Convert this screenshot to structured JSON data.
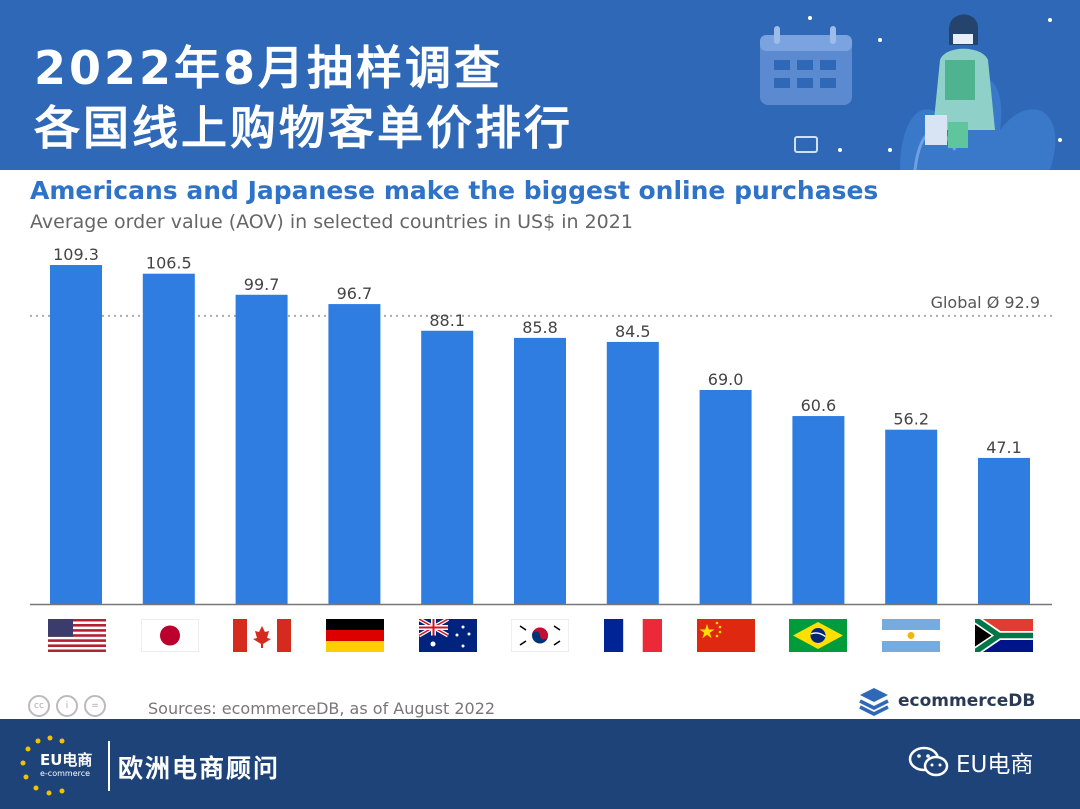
{
  "header": {
    "title_line1": "2022年8月抽样调查",
    "title_line2": "各国线上购物客单价排行"
  },
  "chart_data": {
    "type": "bar",
    "title": "Americans and Japanese make the biggest online purchases",
    "subtitle": "Average order value (AOV) in selected countries in US$ in 2021",
    "categories": [
      "United States",
      "Japan",
      "Canada",
      "Germany",
      "Australia",
      "South Korea",
      "France",
      "China",
      "Brazil",
      "Argentina",
      "South Africa"
    ],
    "values": [
      109.3,
      106.5,
      99.7,
      96.7,
      88.1,
      85.8,
      84.5,
      69.0,
      60.6,
      56.2,
      47.1
    ],
    "value_labels": [
      "109.3",
      "106.5",
      "99.7",
      "96.7",
      "88.1",
      "85.8",
      "84.5",
      "69.0",
      "60.6",
      "56.2",
      "47.1"
    ],
    "reference_line": {
      "label": "Global Ø 92.9",
      "value": 92.9
    },
    "ylim": [
      0,
      109.3
    ],
    "bar_color": "#2f7de1",
    "grid": false
  },
  "footer": {
    "source": "Sources: ecommerceDB, as of August 2022",
    "brand": "ecommerceDB"
  },
  "bottom_bar": {
    "logo_text": "EU电商",
    "logo_sub": "e-commerce",
    "name": "欧洲电商顾问",
    "wechat": "EU电商"
  },
  "colors": {
    "header_bg": "#2e68b6",
    "bottom_bg": "#1e4378",
    "title_blue": "#2e73c8"
  }
}
